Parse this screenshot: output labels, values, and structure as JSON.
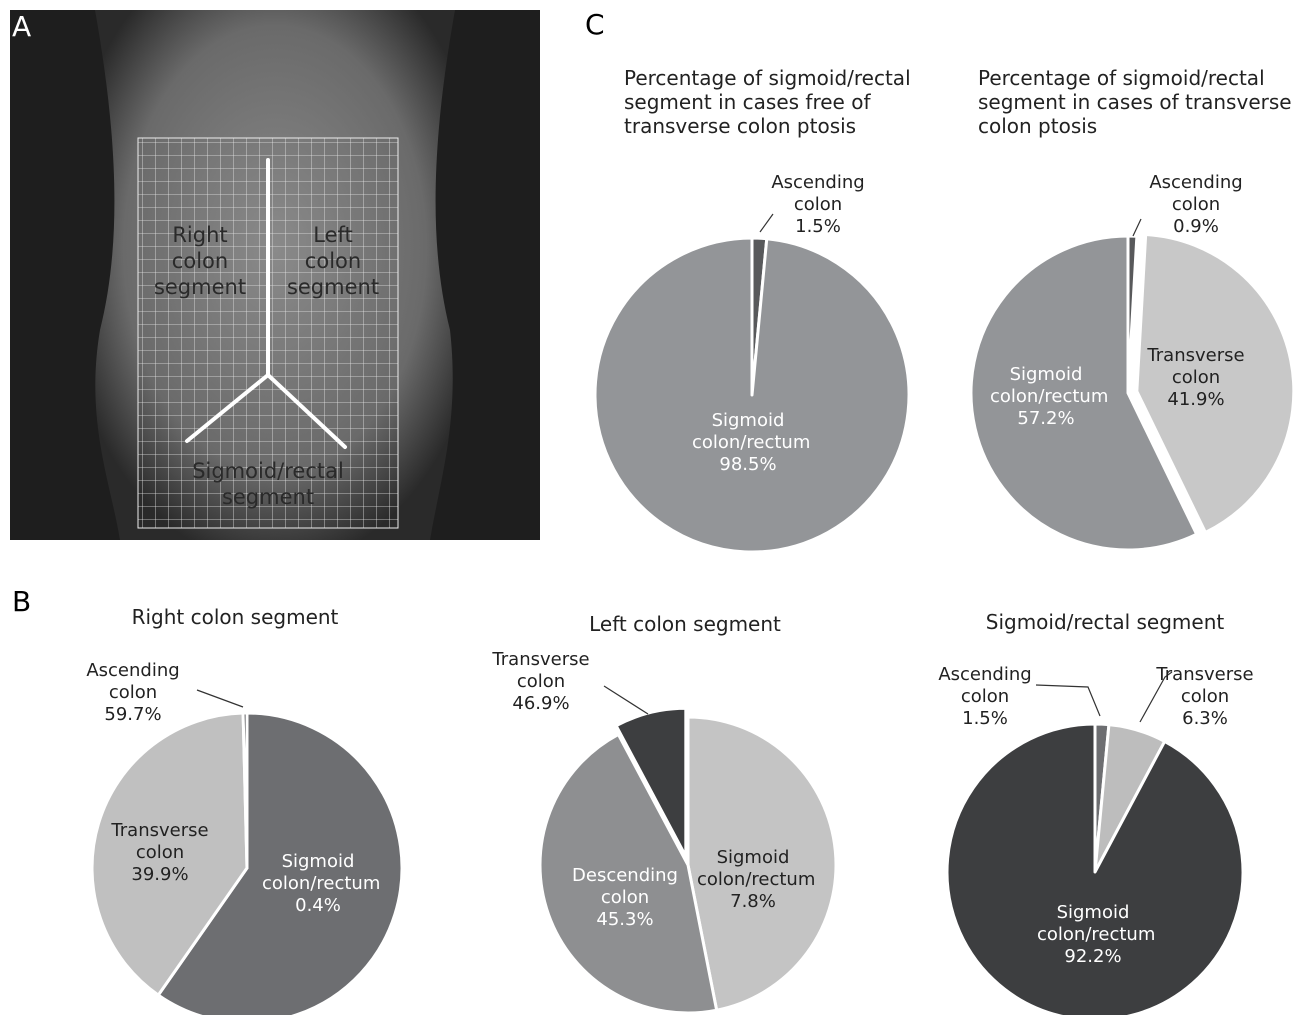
{
  "panels": {
    "a": {
      "label": "A",
      "regions": [
        "Right colon segment",
        "Left colon segment",
        "Sigmoid/rectal segment"
      ]
    },
    "b": {
      "label": "B"
    },
    "c": {
      "label": "C"
    }
  },
  "chart_data": [
    {
      "type": "pie",
      "title": "Percentage of sigmoid/rectal segment in cases free of transverse colon ptosis",
      "categories": [
        "Ascending colon",
        "Sigmoid colon/rectum"
      ],
      "values": [
        1.5,
        98.5
      ],
      "value_labels": [
        "1.5%",
        "98.5%"
      ],
      "colors": [
        "#58595b",
        "#939598"
      ]
    },
    {
      "type": "pie",
      "title": "Percentage of sigmoid/rectal segment in cases of transverse colon ptosis",
      "categories": [
        "Ascending colon",
        "Transverse colon",
        "Sigmoid colon/rectum"
      ],
      "values": [
        0.9,
        41.9,
        57.2
      ],
      "value_labels": [
        "0.9%",
        "41.9%",
        "57.2%"
      ],
      "colors": [
        "#58595b",
        "#c8c8c8",
        "#939598"
      ]
    },
    {
      "type": "pie",
      "title": "Right colon segment",
      "categories": [
        "Ascending colon",
        "Transverse colon",
        "Sigmoid colon/rectum"
      ],
      "values": [
        59.7,
        39.9,
        0.4
      ],
      "value_labels": [
        "59.7%",
        "39.9%",
        "0.4%"
      ],
      "colors": [
        "#6d6e71",
        "#c0c0c0",
        "#3d3e40"
      ]
    },
    {
      "type": "pie",
      "title": "Left colon segment",
      "categories": [
        "Transverse colon",
        "Descending colon",
        "Sigmoid colon/rectum"
      ],
      "values": [
        46.9,
        45.3,
        7.8
      ],
      "value_labels": [
        "46.9%",
        "45.3%",
        "7.8%"
      ],
      "colors": [
        "#c4c4c4",
        "#8e8f91",
        "#3d3e40"
      ]
    },
    {
      "type": "pie",
      "title": "Sigmoid/rectal segment",
      "categories": [
        "Ascending colon",
        "Transverse colon",
        "Sigmoid colon/rectum"
      ],
      "values": [
        1.5,
        6.3,
        92.2
      ],
      "value_labels": [
        "1.5%",
        "6.3%",
        "92.2%"
      ],
      "colors": [
        "#6d6e71",
        "#bdbdbd",
        "#3d3e40"
      ]
    }
  ]
}
